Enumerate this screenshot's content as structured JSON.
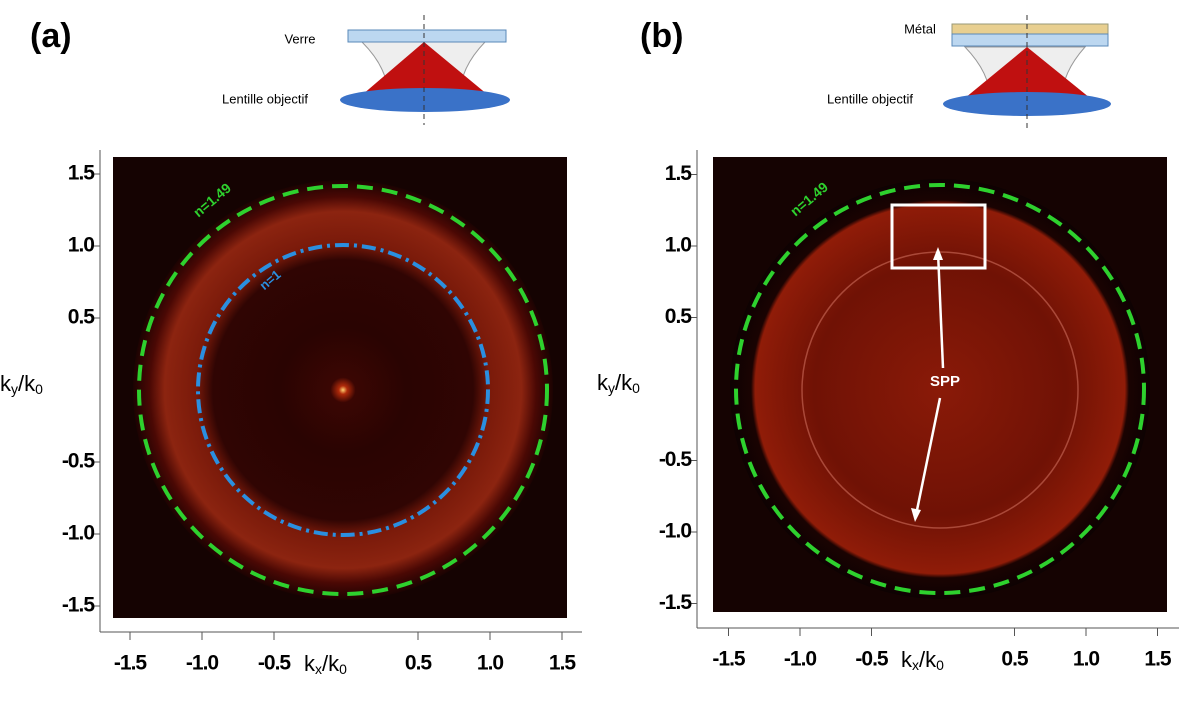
{
  "panels": [
    {
      "label": "(a)",
      "top_label": "Verre",
      "bottom_label": "Lentille objectif",
      "annotations": [
        "n=1.49",
        "n=1"
      ],
      "x_label": {
        "base": "k",
        "sub": "x",
        "base2": "/k",
        "sub2": "0"
      },
      "y_label": {
        "base": "k",
        "sub": "y",
        "base2": "/k",
        "sub2": "0"
      },
      "xticks": [
        {
          "value": -1.5,
          "label": "-1.5"
        },
        {
          "value": -1.0,
          "label": "-1.0"
        },
        {
          "value": -0.5,
          "label": "-0.5"
        },
        {
          "value": 0.5,
          "label": "0.5"
        },
        {
          "value": 1.0,
          "label": "1.0"
        },
        {
          "value": 1.5,
          "label": "1.5"
        }
      ],
      "yticks": [
        {
          "value": 1.5,
          "label": "1.5"
        },
        {
          "value": 1.0,
          "label": "1.0"
        },
        {
          "value": 0.5,
          "label": "0.5"
        },
        {
          "value": -0.5,
          "label": "-0.5"
        },
        {
          "value": -1.0,
          "label": "-1.0"
        },
        {
          "value": -1.5,
          "label": "-1.5"
        }
      ]
    },
    {
      "label": "(b)",
      "top_label": "Métal",
      "bottom_label": "Lentille objectif",
      "annotations": [
        "n=1.49",
        "SPP"
      ],
      "x_label": {
        "base": "k",
        "sub": "x",
        "base2": "/k",
        "sub2": "0"
      },
      "y_label": {
        "base": "k",
        "sub": "y",
        "base2": "/k",
        "sub2": "0"
      },
      "xticks": [
        {
          "value": -1.5,
          "label": "-1.5"
        },
        {
          "value": -1.0,
          "label": "-1.0"
        },
        {
          "value": -0.5,
          "label": "-0.5"
        },
        {
          "value": 0.5,
          "label": "0.5"
        },
        {
          "value": 1.0,
          "label": "1.0"
        },
        {
          "value": 1.5,
          "label": "1.5"
        }
      ],
      "yticks": [
        {
          "value": 1.5,
          "label": "1.5"
        },
        {
          "value": 1.0,
          "label": "1.0"
        },
        {
          "value": 0.5,
          "label": "0.5"
        },
        {
          "value": -0.5,
          "label": "-0.5"
        },
        {
          "value": -1.0,
          "label": "-1.0"
        },
        {
          "value": -1.5,
          "label": "-1.5"
        }
      ]
    }
  ]
}
